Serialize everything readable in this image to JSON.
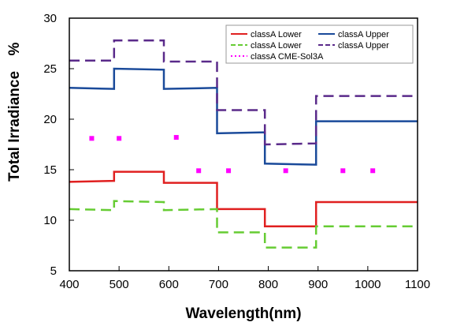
{
  "chart_data": {
    "type": "line",
    "xlabel": "Wavelength(nm)",
    "ylabel": "Total Irradiance",
    "ylabel_unit": "%",
    "xlim": [
      400,
      1100
    ],
    "ylim": [
      5,
      30
    ],
    "x_ticks": [
      "400",
      "500",
      "600",
      "700",
      "800",
      "900",
      "1000",
      "1100"
    ],
    "y_ticks": [
      "5",
      "10",
      "15",
      "20",
      "25",
      "30"
    ],
    "grid": false,
    "legend_position": "top-right",
    "series": [
      {
        "name": "classA  Lower",
        "color": "#e02020",
        "style": "solid",
        "points": [
          [
            400,
            13.8
          ],
          [
            490,
            13.9
          ],
          [
            490,
            14.8
          ],
          [
            590,
            14.8
          ],
          [
            590,
            13.7
          ],
          [
            697,
            13.7
          ],
          [
            697,
            11.1
          ],
          [
            793,
            11.1
          ],
          [
            793,
            9.4
          ],
          [
            896,
            9.4
          ],
          [
            896,
            11.8
          ],
          [
            1100,
            11.8
          ]
        ]
      },
      {
        "name": "classA  Upper",
        "color": "#1a4a9a",
        "style": "solid",
        "points": [
          [
            400,
            23.1
          ],
          [
            490,
            23.0
          ],
          [
            490,
            25.0
          ],
          [
            590,
            24.9
          ],
          [
            590,
            23.0
          ],
          [
            697,
            23.1
          ],
          [
            697,
            18.6
          ],
          [
            793,
            18.7
          ],
          [
            793,
            15.6
          ],
          [
            896,
            15.5
          ],
          [
            896,
            19.8
          ],
          [
            1100,
            19.8
          ]
        ]
      },
      {
        "name": "classA  Lower",
        "color": "#66cc33",
        "style": "dashed",
        "points": [
          [
            400,
            11.1
          ],
          [
            490,
            11.0
          ],
          [
            490,
            11.9
          ],
          [
            590,
            11.8
          ],
          [
            590,
            11.0
          ],
          [
            697,
            11.1
          ],
          [
            697,
            8.8
          ],
          [
            793,
            8.8
          ],
          [
            793,
            7.3
          ],
          [
            896,
            7.3
          ],
          [
            896,
            9.4
          ],
          [
            1100,
            9.4
          ]
        ]
      },
      {
        "name": "classA  Upper",
        "color": "#5a2a8a",
        "style": "dashed",
        "points": [
          [
            400,
            25.8
          ],
          [
            490,
            25.8
          ],
          [
            490,
            27.8
          ],
          [
            590,
            27.8
          ],
          [
            590,
            25.7
          ],
          [
            697,
            25.7
          ],
          [
            697,
            20.9
          ],
          [
            793,
            20.9
          ],
          [
            793,
            17.5
          ],
          [
            896,
            17.6
          ],
          [
            896,
            22.3
          ],
          [
            1100,
            22.3
          ]
        ]
      },
      {
        "name": "classA  CME-Sol3A",
        "color": "#ff00ff",
        "style": "dotted",
        "points": [
          [
            445,
            18.1
          ],
          [
            500,
            18.1
          ],
          [
            615,
            18.2
          ],
          [
            660,
            14.9
          ],
          [
            720,
            14.9
          ],
          [
            835,
            14.9
          ],
          [
            950,
            14.9
          ],
          [
            1010,
            14.9
          ]
        ]
      }
    ]
  }
}
